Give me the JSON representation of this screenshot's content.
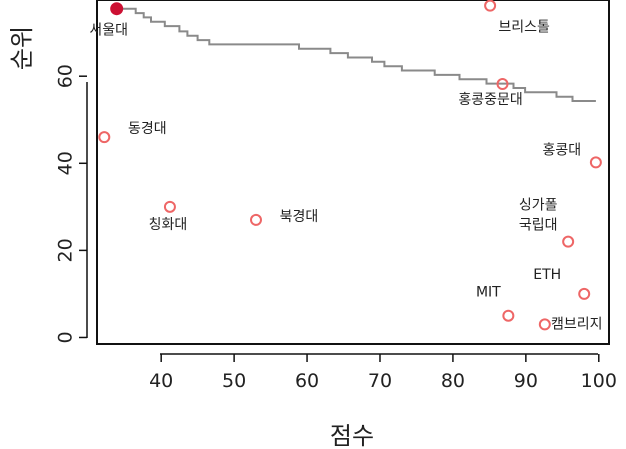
{
  "chart_data": {
    "type": "scatter",
    "title": "",
    "xlabel": "점수",
    "ylabel": "순위",
    "xlim": [
      31.2,
      101.4
    ],
    "ylim": [
      -1.5,
      77.5
    ],
    "x_ticks": [
      40,
      50,
      60,
      70,
      80,
      90,
      100
    ],
    "y_ticks": [
      0,
      20,
      40,
      60
    ],
    "step_line": [
      [
        33.9,
        75.5
      ],
      [
        36.5,
        75.5
      ],
      [
        36.5,
        74.5
      ],
      [
        37.6,
        74.5
      ],
      [
        37.6,
        73.5
      ],
      [
        38.6,
        73.5
      ],
      [
        38.6,
        72.5
      ],
      [
        40.5,
        72.5
      ],
      [
        40.5,
        71.5
      ],
      [
        42.5,
        71.5
      ],
      [
        42.5,
        70.3
      ],
      [
        43.6,
        70.3
      ],
      [
        43.6,
        69.3
      ],
      [
        45.0,
        69.3
      ],
      [
        45.0,
        68.3
      ],
      [
        46.6,
        68.3
      ],
      [
        46.6,
        67.3
      ],
      [
        58.9,
        67.3
      ],
      [
        58.9,
        66.3
      ],
      [
        63.2,
        66.3
      ],
      [
        63.2,
        65.3
      ],
      [
        65.6,
        65.3
      ],
      [
        65.6,
        64.3
      ],
      [
        68.9,
        64.3
      ],
      [
        68.9,
        63.3
      ],
      [
        70.6,
        63.3
      ],
      [
        70.6,
        62.3
      ],
      [
        73.0,
        62.3
      ],
      [
        73.0,
        61.3
      ],
      [
        77.5,
        61.3
      ],
      [
        77.5,
        60.3
      ],
      [
        80.9,
        60.3
      ],
      [
        80.9,
        59.3
      ],
      [
        84.6,
        59.3
      ],
      [
        84.6,
        58.3
      ],
      [
        88.3,
        58.3
      ],
      [
        88.3,
        57.3
      ],
      [
        89.9,
        57.3
      ],
      [
        89.9,
        56.3
      ],
      [
        94.2,
        56.3
      ],
      [
        94.2,
        55.3
      ],
      [
        96.4,
        55.3
      ],
      [
        96.4,
        54.3
      ],
      [
        99.6,
        54.3
      ]
    ],
    "points": [
      {
        "label": "서울대",
        "x": 33.9,
        "y": 75.5,
        "filled": true
      },
      {
        "label": "브리스톨",
        "x": 85.1,
        "y": 76.2
      },
      {
        "label": "홍콩중문대",
        "x": 86.8,
        "y": 58.2
      },
      {
        "label": "동경대",
        "x": 32.2,
        "y": 46.0
      },
      {
        "label": "홍콩대",
        "x": 99.6,
        "y": 40.2
      },
      {
        "label": "칭화대",
        "x": 41.2,
        "y": 30.0
      },
      {
        "label": "북경대",
        "x": 53.0,
        "y": 27.0
      },
      {
        "label": "싱가폴\n국립대",
        "x": 95.8,
        "y": 22.0
      },
      {
        "label": "ETH",
        "x": 98.0,
        "y": 10.0
      },
      {
        "label": "MIT",
        "x": 87.6,
        "y": 5.0
      },
      {
        "label": "캠브리지",
        "x": 92.6,
        "y": 3.0
      }
    ],
    "colors": {
      "point": "#ee6666",
      "point_filled": "#cc1133",
      "line": "#8a8a8a",
      "axis": "#111111"
    }
  }
}
